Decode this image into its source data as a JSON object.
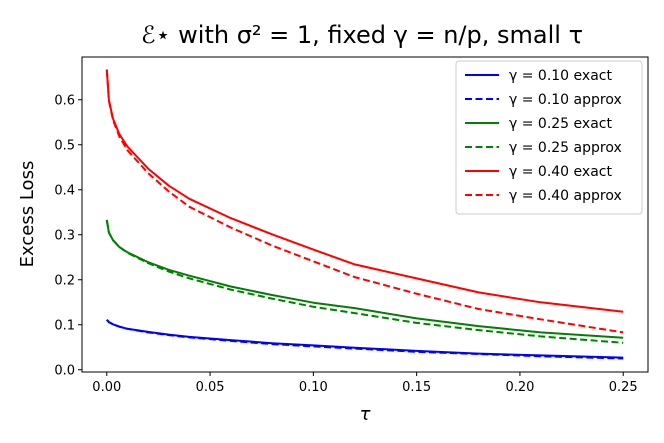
{
  "chart_data": {
    "type": "line",
    "title": "ℰ⋆ with σ² = 1, fixed γ = n/p, small τ",
    "xlabel": "τ",
    "ylabel": "Excess Loss",
    "xlim": [
      -0.012,
      0.262
    ],
    "ylim": [
      -0.005,
      0.695
    ],
    "xticks": [
      0.0,
      0.05,
      0.1,
      0.15,
      0.2,
      0.25
    ],
    "xtick_labels": [
      "0.00",
      "0.05",
      "0.10",
      "0.15",
      "0.20",
      "0.25"
    ],
    "yticks": [
      0.0,
      0.1,
      0.2,
      0.3,
      0.4,
      0.5,
      0.6
    ],
    "ytick_labels": [
      "0.0",
      "0.1",
      "0.2",
      "0.3",
      "0.4",
      "0.5",
      "0.6"
    ],
    "grid": false,
    "legend_position": "top-right",
    "series": [
      {
        "name": "γ = 0.10 exact",
        "color": "#0000ff",
        "dash": "solid",
        "x": [
          0.0,
          0.001,
          0.003,
          0.006,
          0.01,
          0.02,
          0.03,
          0.04,
          0.06,
          0.08,
          0.1,
          0.12,
          0.15,
          0.18,
          0.21,
          0.25
        ],
        "y": [
          0.111,
          0.106,
          0.101,
          0.096,
          0.091,
          0.084,
          0.078,
          0.073,
          0.066,
          0.059,
          0.054,
          0.049,
          0.042,
          0.036,
          0.032,
          0.027
        ]
      },
      {
        "name": "γ = 0.10 approx",
        "color": "#0000ff",
        "dash": "dashed",
        "x": [
          0.0,
          0.001,
          0.003,
          0.006,
          0.01,
          0.02,
          0.03,
          0.04,
          0.06,
          0.08,
          0.1,
          0.12,
          0.15,
          0.18,
          0.21,
          0.25
        ],
        "y": [
          0.111,
          0.106,
          0.101,
          0.096,
          0.091,
          0.083,
          0.077,
          0.072,
          0.064,
          0.057,
          0.052,
          0.047,
          0.04,
          0.035,
          0.03,
          0.025
        ]
      },
      {
        "name": "γ = 0.25 exact",
        "color": "#008000",
        "dash": "solid",
        "x": [
          0.0,
          0.001,
          0.003,
          0.006,
          0.01,
          0.02,
          0.03,
          0.04,
          0.06,
          0.08,
          0.1,
          0.12,
          0.15,
          0.18,
          0.21,
          0.25
        ],
        "y": [
          0.333,
          0.305,
          0.288,
          0.273,
          0.261,
          0.239,
          0.222,
          0.209,
          0.185,
          0.166,
          0.149,
          0.137,
          0.114,
          0.097,
          0.083,
          0.071
        ]
      },
      {
        "name": "γ = 0.25 approx",
        "color": "#008000",
        "dash": "dashed",
        "x": [
          0.0,
          0.001,
          0.003,
          0.006,
          0.01,
          0.02,
          0.03,
          0.04,
          0.06,
          0.08,
          0.1,
          0.12,
          0.15,
          0.18,
          0.21,
          0.25
        ],
        "y": [
          0.333,
          0.305,
          0.288,
          0.273,
          0.26,
          0.237,
          0.218,
          0.203,
          0.178,
          0.158,
          0.14,
          0.126,
          0.104,
          0.088,
          0.074,
          0.06
        ]
      },
      {
        "name": "γ = 0.40 exact",
        "color": "#ff0000",
        "dash": "solid",
        "x": [
          0.0,
          0.001,
          0.003,
          0.006,
          0.01,
          0.02,
          0.03,
          0.04,
          0.06,
          0.08,
          0.1,
          0.12,
          0.15,
          0.18,
          0.21,
          0.25
        ],
        "y": [
          0.667,
          0.599,
          0.558,
          0.524,
          0.496,
          0.447,
          0.409,
          0.38,
          0.337,
          0.301,
          0.267,
          0.234,
          0.203,
          0.172,
          0.15,
          0.129
        ]
      },
      {
        "name": "γ = 0.40 approx",
        "color": "#ff0000",
        "dash": "dashed",
        "x": [
          0.0,
          0.001,
          0.003,
          0.006,
          0.01,
          0.02,
          0.03,
          0.04,
          0.06,
          0.08,
          0.1,
          0.12,
          0.15,
          0.18,
          0.21,
          0.25
        ],
        "y": [
          0.667,
          0.598,
          0.555,
          0.519,
          0.488,
          0.437,
          0.396,
          0.362,
          0.316,
          0.276,
          0.241,
          0.206,
          0.169,
          0.135,
          0.112,
          0.083
        ]
      }
    ]
  }
}
